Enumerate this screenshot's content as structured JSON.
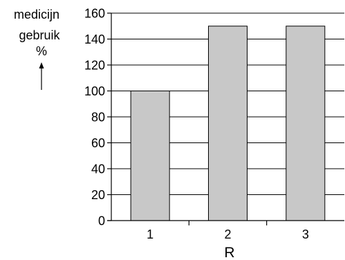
{
  "chart_data": {
    "type": "bar",
    "categories": [
      "1",
      "2",
      "3"
    ],
    "values": [
      100,
      150,
      150
    ],
    "title": "",
    "ylabel_lines": [
      "medicijn",
      "gebruik",
      "%"
    ],
    "xlabel": "R",
    "ylim": [
      0,
      160
    ],
    "yticks": [
      0,
      20,
      40,
      60,
      80,
      100,
      120,
      140,
      160
    ],
    "grid": true,
    "bar_color": "#c8c8c8",
    "edge_color": "#000000"
  }
}
